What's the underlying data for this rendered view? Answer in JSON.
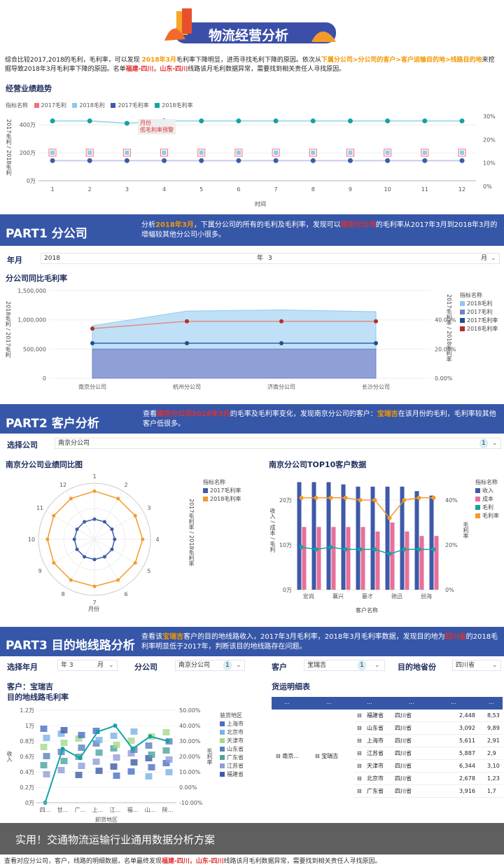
{
  "header": {
    "title": "物流经营分析"
  },
  "intro": {
    "p1": "综合比较2017,2018的毛利，毛利率，可以发现",
    "p2": "2018年3月",
    "p3": "毛利率下降明显，进而寻找毛利下降的原因。依次从",
    "p4": "下属分公司>分公司的客户>客户运输目的地>线路目的地",
    "p5": "来挖掘导致2018年3月毛利率下降的原因。名单",
    "p6": "福建-四川，山东-四川",
    "p7": "线路该月毛利数据异常，需要找到相关责任人寻找原因。"
  },
  "trend": {
    "title": "经营业绩趋势",
    "legend_label": "指标名称",
    "legend": [
      "2017毛利",
      "2018毛利",
      "2017毛利率",
      "2018毛利率"
    ],
    "ylabel": "2017毛利 / 2018毛利",
    "xlabel": "时间",
    "yticks": [
      "400万",
      "200万",
      "0万"
    ],
    "rticks": [
      "30%",
      "20%",
      "10%",
      "0%"
    ],
    "annotation1": "月份",
    "annotation2": "低毛利率预警",
    "colors": {
      "m2017": "#f26d7d",
      "m2018": "#8ec9ee",
      "r2017": "#3e5aa8",
      "r2018": "#14a3a3"
    }
  },
  "part1": {
    "head": "PART1 分公司",
    "d1": "分析",
    "d2": "2018年3月",
    "d3": "，下属分公司的所有的毛利及毛利率，发现可以",
    "d4": "南京分公司",
    "d5": "的毛利率从2017年3月到2018年3月的增幅较其他分公司小很多。",
    "year_label": "年月",
    "year_val": "2018",
    "year_unit": "年",
    "month_val": "3",
    "month_unit": "月",
    "chart_title": "分公司同比毛利率",
    "ylabel": "2018毛利 / 2017毛利",
    "rlabel": "2017毛利率 / 2018毛利率",
    "legend_label": "指标名称",
    "legend": [
      "2018毛利",
      "2017毛利",
      "2017毛利率",
      "2018毛利率"
    ],
    "yticks": [
      "1,500,000",
      "1,000,000",
      "500,000",
      "0"
    ],
    "rticks": [
      "40.00%",
      "20.00%",
      "0.00%"
    ]
  },
  "part2": {
    "head": "PART2 客户分析",
    "d1": "查看",
    "d2": "南京分公司2018年3月",
    "d3": "的毛率及毛利率变化，发现南京分公司的客户：",
    "d4": "宝瑞吉",
    "d5": "在该月份的毛利，毛利率较其他客户低很多。",
    "sel_label": "选择公司",
    "sel_val": "南京分公司",
    "sel_count": "1",
    "radar_title": "南京分公司业绩同比图",
    "radar_legend_label": "指标名称",
    "radar_legend": [
      "2017毛利率",
      "2018毛利率"
    ],
    "radar_side": "2017毛利率 / 2018毛利率",
    "radar_xlabel": "月份",
    "radar_axes": [
      "1",
      "2",
      "3",
      "4",
      "5",
      "6",
      "7",
      "8",
      "9",
      "10",
      "11",
      "12"
    ],
    "bar_title": "南京分公司TOP10客户数据",
    "bar_ylabel": "收入 / 成本 / 毛利",
    "bar_rlabel": "毛利率",
    "bar_xlabel": "客户名称",
    "bar_legend_label": "指标名称",
    "bar_legend": [
      "收入",
      "成本",
      "毛利",
      "毛利率"
    ],
    "bar_yticks": [
      "20万",
      "10万",
      "0万"
    ],
    "bar_rticks": [
      "40%",
      "20%",
      "0%"
    ],
    "bar_cats": [
      "宏尚",
      "襄兴",
      "篓才",
      "驰迅",
      "创海"
    ]
  },
  "part3": {
    "head": "PART3 目的地线路分析",
    "d1": "查看该",
    "d2": "宝瑞吉",
    "d3": "客户的目的地线路收入，2017年3月毛利率，2018年3月毛利率数据，发现目的地为",
    "d4": "四川省",
    "d5": "的2018毛利率明显低于2017年，判断该目的地线路存在问题。",
    "f_year": "选择年月",
    "f_year_val": "年 3",
    "f_month": "月",
    "f_branch": "分公司",
    "f_branch_val": "南京分公司",
    "f_cust": "客户",
    "f_cust_val": "宝瑞吉",
    "f_dest": "目的地省份",
    "f_dest_val": "四川省",
    "f_count": "1",
    "left_title1": "客户：宝瑞吉",
    "left_title2": "目的地线路毛利率",
    "left_ylabel": "收入",
    "left_rlabel": "毛利率",
    "left_xlabel": "卸货地区",
    "left_yticks": [
      "1.2万",
      "1万",
      "0.8万",
      "0.6万",
      "0.4万",
      "0.2万",
      "0万"
    ],
    "left_rticks": [
      "50.00%",
      "40.00%",
      "30.00%",
      "20.00%",
      "10.00%",
      "0.00%",
      "-10.00%"
    ],
    "left_xticks": [
      "四...",
      "甘...",
      "广...",
      "上...",
      "江...",
      "福...",
      "山...",
      "陕..."
    ],
    "left_legend_label": "装货地区",
    "left_legend": [
      "上海市",
      "北京市",
      "天津市",
      "山东省",
      "广东省",
      "江苏省",
      "福建省"
    ],
    "right_title": "货运明细表",
    "table_headers": [
      "...",
      "...",
      "...",
      "...",
      "...",
      "..."
    ],
    "table_rows": [
      {
        "from": "福建省",
        "to": "四川省",
        "v1": "2,448",
        "v2": "8,53"
      },
      {
        "from": "山东省",
        "to": "四川省",
        "v1": "3,092",
        "v2": "9,89"
      },
      {
        "from": "上海市",
        "to": "四川省",
        "v1": "5,611",
        "v2": "2,91"
      },
      {
        "from": "江苏省",
        "to": "四川省",
        "v1": "5,887",
        "v2": "2,9"
      },
      {
        "from": "天津市",
        "to": "四川省",
        "v1": "6,344",
        "v2": "3,10"
      },
      {
        "from": "北京市",
        "to": "四川省",
        "v1": "2,678",
        "v2": "1,23"
      },
      {
        "from": "广东省",
        "to": "四川省",
        "v1": "3,916",
        "v2": "1,7"
      }
    ],
    "table_branch": "南京...",
    "table_customer": "宝瑞吉"
  },
  "footer": {
    "overlay": "实用！交通物流运输行业通用数据分析方案",
    "bottom1": "查看对应分公司，客户，线路的明细数据，名单最终发现",
    "bottom2": "福建-四川，山东-四川",
    "bottom3": "线路该月毛利数据异常，需要找到相关责任人寻找原因。"
  },
  "chart_data": [
    {
      "type": "line",
      "title": "经营业绩趋势",
      "xlabel": "时间",
      "ylabel": "2017毛利 / 2018毛利",
      "x": [
        1,
        2,
        3,
        4,
        5,
        6,
        7,
        8,
        9,
        10,
        11,
        12
      ],
      "series": [
        {
          "name": "2017毛利",
          "axis": "left",
          "values": [
            200,
            200,
            200,
            200,
            200,
            200,
            200,
            200,
            200,
            200,
            200,
            200
          ]
        },
        {
          "name": "2018毛利",
          "axis": "left",
          "values": [
            200,
            200,
            200,
            200,
            200,
            200,
            200,
            200,
            200,
            200,
            200,
            200
          ]
        },
        {
          "name": "2017毛利率",
          "axis": "right",
          "values": [
            11,
            11,
            11,
            11,
            11,
            11,
            11,
            11,
            11,
            11,
            11,
            11
          ]
        },
        {
          "name": "2018毛利率",
          "axis": "right",
          "values": [
            28,
            28,
            27,
            28,
            28,
            28,
            28,
            28,
            28,
            28,
            28,
            28
          ]
        }
      ],
      "ylim": [
        0,
        500
      ],
      "y2lim": [
        0,
        30
      ]
    },
    {
      "type": "area",
      "title": "分公司同比毛利率",
      "categories": [
        "南京分公司",
        "杭州分公司",
        "济南分公司",
        "长沙分公司"
      ],
      "series": [
        {
          "name": "2018毛利",
          "axis": "left",
          "values": [
            900000,
            1150000,
            1170000,
            1140000
          ]
        },
        {
          "name": "2017毛利",
          "axis": "left",
          "values": [
            500000,
            500000,
            500000,
            500000
          ]
        },
        {
          "name": "2017毛利率",
          "axis": "right",
          "values": [
            24,
            24,
            24,
            24
          ]
        },
        {
          "name": "2018毛利率",
          "axis": "right",
          "values": [
            34,
            39,
            39,
            39
          ]
        }
      ],
      "ylim": [
        0,
        1500000
      ],
      "y2lim": [
        0,
        60
      ]
    },
    {
      "type": "radar",
      "title": "南京分公司业绩同比图",
      "categories": [
        "1",
        "2",
        "3",
        "4",
        "5",
        "6",
        "7",
        "8",
        "9",
        "10",
        "11",
        "12"
      ],
      "series": [
        {
          "name": "2017毛利率",
          "values": [
            0.36,
            0.36,
            0.36,
            0.36,
            0.36,
            0.36,
            0.36,
            0.36,
            0.36,
            0.36,
            0.36,
            0.36
          ]
        },
        {
          "name": "2018毛利率",
          "values": [
            0.86,
            0.84,
            0.84,
            0.86,
            0.84,
            0.84,
            0.84,
            0.84,
            0.84,
            0.84,
            0.84,
            0.84
          ]
        }
      ]
    },
    {
      "type": "bar",
      "title": "南京分公司TOP10客户数据",
      "categories": [
        "宏尚",
        "",
        "襄兴",
        "",
        "篓才",
        "",
        "",
        "驰迅",
        "",
        "创海"
      ],
      "series": [
        {
          "name": "收入",
          "axis": "left",
          "values": [
            24,
            24,
            24,
            23.5,
            23,
            23,
            23,
            23,
            22,
            21
          ]
        },
        {
          "name": "成本",
          "axis": "left",
          "values": [
            14,
            14,
            14,
            14,
            14,
            13,
            15,
            13,
            12,
            12
          ]
        },
        {
          "name": "毛利",
          "axis": "left",
          "values": [
            9.5,
            9,
            9.5,
            9,
            9,
            9,
            8,
            9,
            9,
            9
          ]
        },
        {
          "name": "毛利率",
          "axis": "right",
          "values": [
            41,
            41,
            41,
            41,
            40,
            40,
            32,
            40,
            41,
            41
          ]
        }
      ],
      "ylim": [
        0,
        25
      ],
      "y2lim": [
        0,
        50
      ]
    },
    {
      "type": "scatter",
      "title": "目的地线路毛利率",
      "categories": [
        "四...",
        "甘...",
        "广...",
        "上...",
        "江...",
        "福...",
        "山...",
        "陕..."
      ],
      "series": [
        {
          "name": "毛利率",
          "axis": "right",
          "values": [
            -10,
            25,
            19,
            36,
            40,
            25,
            33,
            30
          ]
        }
      ],
      "ylim": [
        0,
        1.2
      ],
      "y2lim": [
        -10,
        50
      ]
    }
  ]
}
